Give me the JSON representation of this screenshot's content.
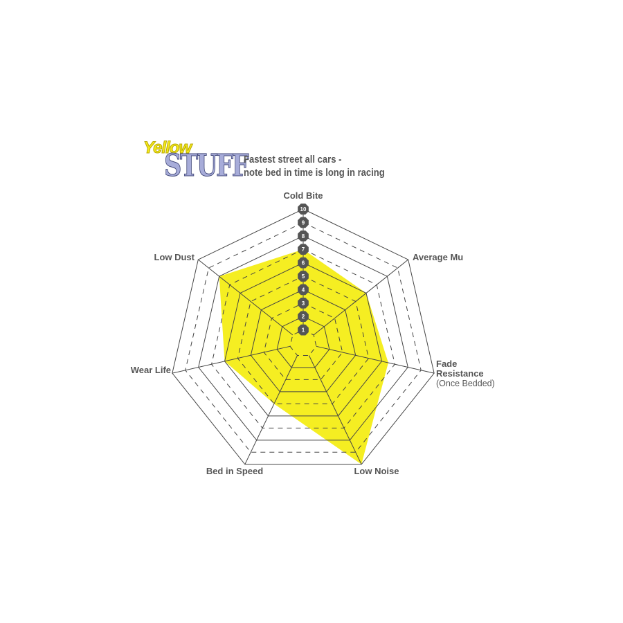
{
  "logo": {
    "line1": "Yellow",
    "line2": "STUFF"
  },
  "subtitle": [
    "Fastest street all cars -",
    "note bed in time is long in racing"
  ],
  "colors": {
    "fill": "#f5ee22",
    "grid": "#444444",
    "badge": "#555555",
    "text": "#555555"
  },
  "chart_data": {
    "type": "radar",
    "title": "",
    "axes": [
      "Cold Bite",
      "Average Mu",
      "Fade Resistance",
      "Low Noise",
      "Bed in Speed",
      "Wear Life",
      "Low Dust"
    ],
    "axis_sublabels": {
      "Fade Resistance": "(Once Bedded)"
    },
    "values": [
      7,
      6,
      6.5,
      10,
      5,
      6,
      8
    ],
    "range": [
      0,
      10
    ],
    "tick_labels": [
      "1",
      "2",
      "3",
      "4",
      "5",
      "6",
      "7",
      "8",
      "9",
      "10"
    ]
  }
}
